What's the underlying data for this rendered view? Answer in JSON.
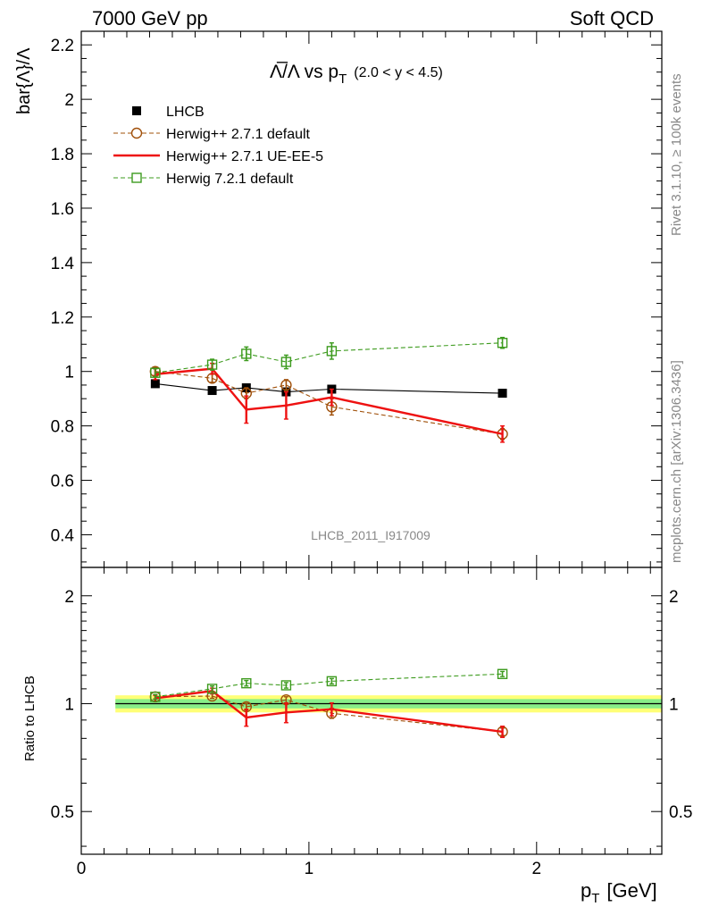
{
  "header": {
    "left": "7000 GeV pp",
    "right": "Soft QCD"
  },
  "side_labels": {
    "rivet": "Rivet 3.1.10, ≥ 100k events",
    "mcplots": "mcplots.cern.ch [arXiv:1306.3436]"
  },
  "watermark": "LHCB_2011_I917009",
  "chart_data": [
    {
      "type": "line",
      "title_main": "Λ̅/Λ vs p",
      "title_sub": "T",
      "title_range": "(2.0 < y < 4.5)",
      "xlabel_main": "p",
      "xlabel_sub": "T",
      "xlabel_unit": "[GeV]",
      "ylabel": "bar{Λ}/Λ",
      "xlim": [
        0,
        2.55
      ],
      "ylim": [
        0.28,
        2.25
      ],
      "log_y": false,
      "y_ticks": [
        0.4,
        0.6,
        0.8,
        1,
        1.2,
        1.4,
        1.6,
        1.8,
        2,
        2.2
      ],
      "y_tick_labels": [
        "0.4",
        "0.6",
        "0.8",
        "1",
        "1.2",
        "1.4",
        "1.6",
        "1.8",
        "2",
        "2.2"
      ],
      "legend_position": "top-left",
      "series": [
        {
          "name": "LHCB",
          "style": "markers",
          "marker": "filled-square",
          "color": "#000000",
          "x": [
            0.325,
            0.575,
            0.725,
            0.9,
            1.1,
            1.85
          ],
          "y": [
            0.955,
            0.93,
            0.94,
            0.925,
            0.935,
            0.92
          ],
          "err": [
            0,
            0,
            0,
            0,
            0,
            0
          ]
        },
        {
          "name": "Herwig++ 2.7.1 default",
          "style": "dashed",
          "marker": "open-circle",
          "color": "#a0500a",
          "x": [
            0.325,
            0.575,
            0.725,
            0.9,
            1.1,
            1.85
          ],
          "y": [
            1.0,
            0.975,
            0.92,
            0.95,
            0.87,
            0.77
          ],
          "err": [
            0.015,
            0.015,
            0.02,
            0.02,
            0.03,
            0.02
          ]
        },
        {
          "name": "Herwig++ 2.7.1 UE-EE-5",
          "style": "solid",
          "marker": "none",
          "color": "#ee1111",
          "x": [
            0.325,
            0.575,
            0.725,
            0.9,
            1.1,
            1.85
          ],
          "y": [
            0.99,
            1.01,
            0.86,
            0.875,
            0.905,
            0.77
          ],
          "err": [
            0.02,
            0.02,
            0.05,
            0.05,
            0.03,
            0.03
          ]
        },
        {
          "name": "Herwig 7.2.1 default",
          "style": "dashed",
          "marker": "open-square",
          "color": "#3d9b1e",
          "x": [
            0.325,
            0.575,
            0.725,
            0.9,
            1.1,
            1.85
          ],
          "y": [
            0.995,
            1.025,
            1.065,
            1.035,
            1.075,
            1.105
          ],
          "err": [
            0.015,
            0.02,
            0.025,
            0.025,
            0.03,
            0.02
          ]
        }
      ]
    },
    {
      "type": "line",
      "ylabel": "Ratio to LHCB",
      "xlim": [
        0,
        2.55
      ],
      "ylim": [
        0.38,
        2.4
      ],
      "log_y": true,
      "x_ticks": [
        0,
        1,
        2
      ],
      "x_tick_labels": [
        "0",
        "1",
        "2"
      ],
      "y_ticks": [
        0.5,
        1,
        2
      ],
      "y_tick_labels": [
        "0.5",
        "1",
        "2"
      ],
      "band": {
        "x_range": [
          0.15,
          2.55
        ],
        "inner": [
          0.97,
          1.03
        ],
        "outer": [
          0.945,
          1.055
        ],
        "inner_color": "#88ee88",
        "outer_color": "#ffff77"
      },
      "series": [
        {
          "name": "Herwig++ 2.7.1 default",
          "style": "dashed",
          "marker": "open-circle",
          "color": "#a0500a",
          "x": [
            0.325,
            0.575,
            0.725,
            0.9,
            1.1,
            1.85
          ],
          "y": [
            1.045,
            1.05,
            0.98,
            1.025,
            0.94,
            0.835
          ],
          "err": [
            0.015,
            0.015,
            0.02,
            0.02,
            0.03,
            0.02
          ]
        },
        {
          "name": "Herwig++ 2.7.1 UE-EE-5",
          "style": "solid",
          "marker": "none",
          "color": "#ee1111",
          "x": [
            0.325,
            0.575,
            0.725,
            0.9,
            1.1,
            1.85
          ],
          "y": [
            1.035,
            1.085,
            0.915,
            0.945,
            0.965,
            0.835
          ],
          "err": [
            0.02,
            0.02,
            0.05,
            0.06,
            0.04,
            0.03
          ]
        },
        {
          "name": "Herwig 7.2.1 default",
          "style": "dashed",
          "marker": "open-square",
          "color": "#3d9b1e",
          "x": [
            0.325,
            0.575,
            0.725,
            0.9,
            1.1,
            1.85
          ],
          "y": [
            1.045,
            1.1,
            1.14,
            1.125,
            1.155,
            1.21
          ],
          "err": [
            0.015,
            0.02,
            0.02,
            0.02,
            0.02,
            0.02
          ]
        }
      ]
    }
  ]
}
